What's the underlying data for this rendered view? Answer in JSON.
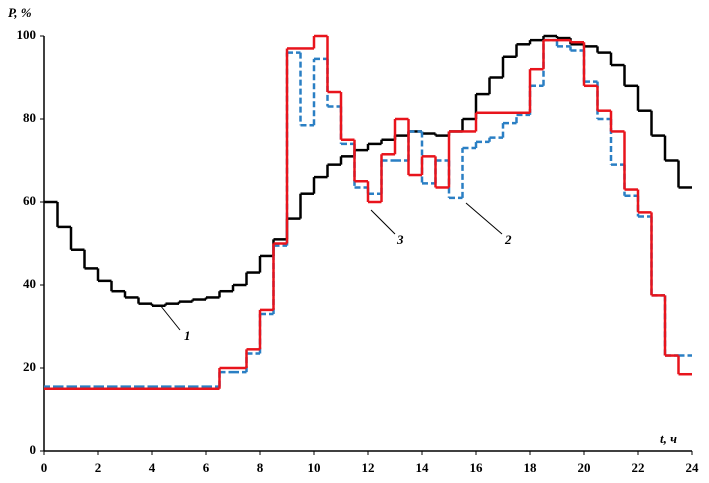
{
  "chart_data": {
    "type": "step",
    "x_label": "t, ч",
    "y_label": "P, %",
    "xlim": [
      0,
      24
    ],
    "ylim": [
      0,
      100
    ],
    "xticks": [
      0,
      2,
      4,
      6,
      8,
      10,
      12,
      14,
      16,
      18,
      20,
      22,
      24
    ],
    "yticks": [
      0,
      20,
      40,
      60,
      80,
      100
    ],
    "grid": false,
    "x": [
      0,
      0.5,
      1,
      1.5,
      2,
      2.5,
      3,
      3.5,
      4,
      4.5,
      5,
      5.5,
      6,
      6.5,
      7,
      7.5,
      8,
      8.5,
      9,
      9.5,
      10,
      10.5,
      11,
      11.5,
      12,
      12.5,
      13,
      13.5,
      14,
      14.5,
      15,
      15.5,
      16,
      16.5,
      17,
      17.5,
      18,
      18.5,
      19,
      19.5,
      20,
      20.5,
      21,
      21.5,
      22,
      22.5,
      23,
      23.5
    ],
    "series": [
      {
        "name": "1",
        "color": "#000000",
        "dashed": false,
        "values": [
          60,
          54,
          48.5,
          44,
          41,
          38.5,
          37,
          35.5,
          35,
          35.5,
          36,
          36.5,
          37,
          38.5,
          40,
          43,
          47,
          51,
          56,
          62,
          66,
          69,
          71,
          72.5,
          74,
          75,
          76,
          77,
          76.5,
          76,
          77,
          80,
          86,
          90,
          95,
          98,
          99,
          100,
          99.5,
          98,
          97.5,
          96,
          93,
          88,
          82,
          76,
          70,
          63.5
        ]
      },
      {
        "name": "2",
        "color": "#2a7fc4",
        "dashed": true,
        "values": [
          15.5,
          15.5,
          15.5,
          15.5,
          15.5,
          15.5,
          15.5,
          15.5,
          15.5,
          15.5,
          15.5,
          15.5,
          15.5,
          19,
          19,
          23.5,
          33,
          49.5,
          96,
          78.5,
          94.5,
          83,
          74,
          63.5,
          62,
          70,
          70,
          77,
          64.5,
          70,
          61,
          73,
          74.5,
          75.5,
          79,
          81,
          88,
          99,
          97.5,
          96.5,
          89,
          80,
          69,
          61.5,
          56.5,
          37.5,
          23,
          23
        ]
      },
      {
        "name": "3",
        "color": "#e8141c",
        "dashed": false,
        "values": [
          15,
          15,
          15,
          15,
          15,
          15,
          15,
          15,
          15,
          15,
          15,
          15,
          15,
          20,
          20,
          24.5,
          34,
          50,
          97,
          97,
          100,
          86.5,
          75,
          65,
          60,
          71.5,
          80,
          66.5,
          71,
          63.5,
          77,
          77,
          81.5,
          81.5,
          81.5,
          81.5,
          92,
          99,
          99,
          98.5,
          88,
          82,
          77,
          63,
          57.5,
          37.5,
          23,
          18.5
        ]
      }
    ]
  }
}
